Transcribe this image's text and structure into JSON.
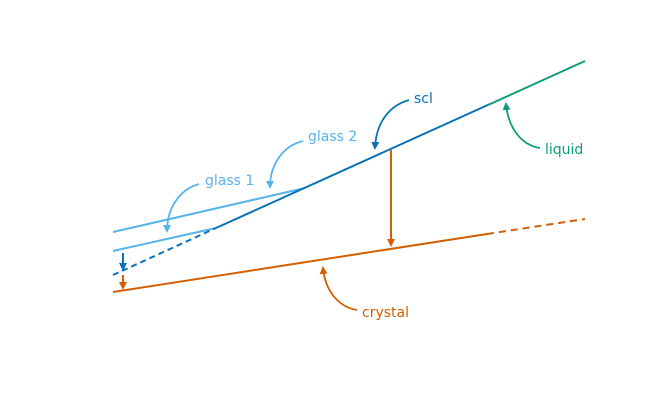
{
  "labels": {
    "scl": "scl",
    "liquid": "liquid",
    "glass1": "glass 1",
    "glass2": "glass 2",
    "crystal": "crystal"
  },
  "colors": {
    "scl": "#0a72b5",
    "liquid": "#0f9e77",
    "glass": "#56b4e9",
    "crystal": "#d55e00"
  }
}
